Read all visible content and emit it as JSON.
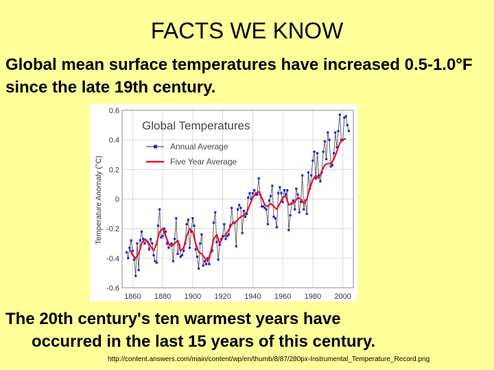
{
  "slide": {
    "title": "FACTS WE KNOW",
    "intro": "Global mean surface temperatures have increased 0.5-1.0°F since the late 19th century.",
    "conclusion_line1": "The 20th century's ten warmest years have",
    "conclusion_line2": "occurred in the last 15 years of this century.",
    "source_credit": "http://content.answers.com/main/content/wp/en/thumb/8/87/280px-Instrumental_Temperature_Record.png"
  },
  "chart_data": {
    "type": "line",
    "title": "Global Temperatures",
    "xlabel": "",
    "ylabel": "Temperature Anomaly (°C)",
    "xlim": [
      1853,
      2007
    ],
    "ylim": [
      -0.6,
      0.6
    ],
    "x_ticks": [
      1860,
      1880,
      1900,
      1920,
      1940,
      1960,
      1980,
      2000
    ],
    "y_ticks": [
      -0.6,
      -0.4,
      -0.2,
      0,
      0.2,
      0.4,
      0.6
    ],
    "legend_position": "top-left",
    "grid": true,
    "colors": {
      "annual_line": "#555555",
      "annual_marker": "#2222dd",
      "five_year": "#e8102a",
      "grid": "#d8d8d8"
    },
    "series": [
      {
        "name": "Annual Average",
        "style": "line-with-markers",
        "x": [
          1856,
          1857,
          1858,
          1859,
          1860,
          1861,
          1862,
          1863,
          1864,
          1865,
          1866,
          1867,
          1868,
          1869,
          1870,
          1871,
          1872,
          1873,
          1874,
          1875,
          1876,
          1877,
          1878,
          1879,
          1880,
          1881,
          1882,
          1883,
          1884,
          1885,
          1886,
          1887,
          1888,
          1889,
          1890,
          1891,
          1892,
          1893,
          1894,
          1895,
          1896,
          1897,
          1898,
          1899,
          1900,
          1901,
          1902,
          1903,
          1904,
          1905,
          1906,
          1907,
          1908,
          1909,
          1910,
          1911,
          1912,
          1913,
          1914,
          1915,
          1916,
          1917,
          1918,
          1919,
          1920,
          1921,
          1922,
          1923,
          1924,
          1925,
          1926,
          1927,
          1928,
          1929,
          1930,
          1931,
          1932,
          1933,
          1934,
          1935,
          1936,
          1937,
          1938,
          1939,
          1940,
          1941,
          1942,
          1943,
          1944,
          1945,
          1946,
          1947,
          1948,
          1949,
          1950,
          1951,
          1952,
          1953,
          1954,
          1955,
          1956,
          1957,
          1958,
          1959,
          1960,
          1961,
          1962,
          1963,
          1964,
          1965,
          1966,
          1967,
          1968,
          1969,
          1970,
          1971,
          1972,
          1973,
          1974,
          1975,
          1976,
          1977,
          1978,
          1979,
          1980,
          1981,
          1982,
          1983,
          1984,
          1985,
          1986,
          1987,
          1988,
          1989,
          1990,
          1991,
          1992,
          1993,
          1994,
          1995,
          1996,
          1997,
          1998,
          1999,
          2000,
          2001,
          2002,
          2003,
          2004
        ],
        "values": [
          -0.36,
          -0.4,
          -0.33,
          -0.28,
          -0.35,
          -0.41,
          -0.52,
          -0.3,
          -0.48,
          -0.28,
          -0.22,
          -0.27,
          -0.3,
          -0.28,
          -0.29,
          -0.34,
          -0.27,
          -0.3,
          -0.38,
          -0.42,
          -0.43,
          -0.18,
          -0.07,
          -0.26,
          -0.25,
          -0.2,
          -0.22,
          -0.3,
          -0.33,
          -0.31,
          -0.3,
          -0.42,
          -0.27,
          -0.13,
          -0.37,
          -0.31,
          -0.39,
          -0.38,
          -0.35,
          -0.3,
          -0.17,
          -0.14,
          -0.33,
          -0.22,
          -0.13,
          -0.18,
          -0.34,
          -0.39,
          -0.47,
          -0.3,
          -0.24,
          -0.45,
          -0.42,
          -0.44,
          -0.4,
          -0.44,
          -0.36,
          -0.35,
          -0.16,
          -0.09,
          -0.29,
          -0.41,
          -0.31,
          -0.27,
          -0.25,
          -0.17,
          -0.27,
          -0.25,
          -0.24,
          -0.18,
          -0.06,
          -0.16,
          -0.16,
          -0.32,
          -0.07,
          -0.04,
          -0.06,
          -0.23,
          -0.08,
          -0.12,
          -0.1,
          0.01,
          0.04,
          0.0,
          0.04,
          0.06,
          0.03,
          0.03,
          0.14,
          0.03,
          -0.05,
          -0.05,
          -0.06,
          -0.07,
          -0.17,
          -0.01,
          0.02,
          0.09,
          -0.12,
          -0.13,
          -0.19,
          0.04,
          0.08,
          0.04,
          -0.02,
          0.06,
          0.03,
          0.06,
          -0.21,
          -0.11,
          -0.03,
          -0.01,
          -0.07,
          0.07,
          0.03,
          -0.09,
          -0.02,
          0.16,
          -0.07,
          -0.01,
          -0.1,
          0.18,
          0.07,
          0.16,
          0.26,
          0.32,
          0.14,
          0.31,
          0.16,
          0.12,
          0.18,
          0.32,
          0.39,
          0.27,
          0.45,
          0.4,
          0.22,
          0.23,
          0.31,
          0.45,
          0.35,
          0.46,
          0.57,
          0.4,
          0.4,
          0.55,
          0.56,
          0.5,
          0.46
        ]
      },
      {
        "name": "Five Year Average",
        "style": "line",
        "x": [
          1858,
          1860,
          1862,
          1864,
          1866,
          1868,
          1870,
          1872,
          1874,
          1876,
          1878,
          1880,
          1882,
          1884,
          1886,
          1888,
          1890,
          1892,
          1894,
          1896,
          1898,
          1900,
          1902,
          1904,
          1906,
          1908,
          1910,
          1912,
          1914,
          1916,
          1918,
          1920,
          1922,
          1924,
          1926,
          1928,
          1930,
          1932,
          1934,
          1936,
          1938,
          1940,
          1942,
          1944,
          1946,
          1948,
          1950,
          1952,
          1954,
          1956,
          1958,
          1960,
          1962,
          1964,
          1966,
          1968,
          1970,
          1972,
          1974,
          1976,
          1978,
          1980,
          1982,
          1984,
          1986,
          1988,
          1990,
          1992,
          1994,
          1996,
          1998,
          2000,
          2002
        ],
        "values": [
          -0.34,
          -0.38,
          -0.4,
          -0.37,
          -0.3,
          -0.27,
          -0.29,
          -0.32,
          -0.35,
          -0.3,
          -0.22,
          -0.2,
          -0.25,
          -0.3,
          -0.32,
          -0.3,
          -0.28,
          -0.35,
          -0.33,
          -0.25,
          -0.2,
          -0.22,
          -0.3,
          -0.36,
          -0.37,
          -0.4,
          -0.42,
          -0.36,
          -0.27,
          -0.24,
          -0.3,
          -0.26,
          -0.24,
          -0.21,
          -0.17,
          -0.16,
          -0.14,
          -0.12,
          -0.11,
          -0.09,
          -0.04,
          0.01,
          0.04,
          0.05,
          0.01,
          -0.04,
          -0.05,
          -0.03,
          -0.05,
          -0.07,
          -0.03,
          0.01,
          0.02,
          -0.04,
          -0.03,
          -0.02,
          0.01,
          0.0,
          -0.03,
          0.0,
          0.07,
          0.13,
          0.16,
          0.14,
          0.19,
          0.23,
          0.24,
          0.24,
          0.27,
          0.32,
          0.38,
          0.4,
          0.41
        ]
      }
    ]
  }
}
